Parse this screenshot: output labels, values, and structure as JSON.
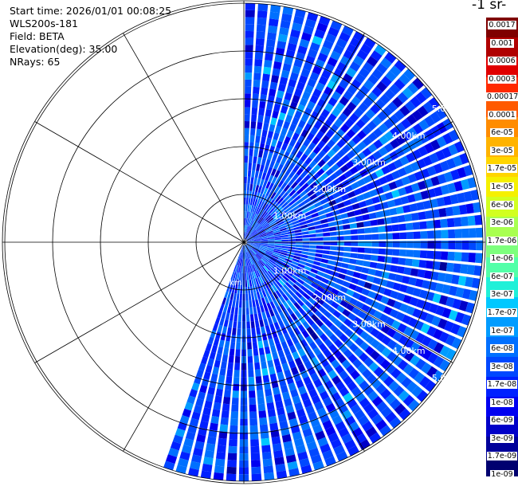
{
  "header": {
    "start_time": "Start time: 2026/01/01 00:08:25",
    "instrument": "WLS200s-181",
    "field": "Field: BETA",
    "elevation": "Elevation(deg): 35.00",
    "nrays": "NRays: 65"
  },
  "colorbar": {
    "title": "-1 sr-",
    "labels": [
      "0.0017",
      "0.001",
      "0.0006",
      "0.0003",
      "0.00017",
      "0.0001",
      "6e-05",
      "3e-05",
      "1.7e-05",
      "1e-05",
      "6e-06",
      "3e-06",
      "1.7e-06",
      "1e-06",
      "6e-07",
      "3e-07",
      "1.7e-07",
      "1e-07",
      "6e-08",
      "3e-08",
      "1.7e-08",
      "1e-08",
      "6e-09",
      "3e-09",
      "1.7e-09",
      "1e-09"
    ],
    "colors": [
      "#7f0000",
      "#b00000",
      "#e00000",
      "#ff2a00",
      "#ff5a00",
      "#ff8c00",
      "#ffb300",
      "#ffd500",
      "#f5f000",
      "#d2ff20",
      "#a8ff50",
      "#7dff7d",
      "#52ffa8",
      "#20f0d8",
      "#00c8ff",
      "#009cff",
      "#0070ff",
      "#0048ff",
      "#0020ff",
      "#0000f0",
      "#0000c8",
      "#00009a",
      "#000070"
    ]
  },
  "range_labels": {
    "upper": [
      "1.00km",
      "2.00km",
      "3.00km",
      "4.00km",
      "5.00km"
    ],
    "lower": [
      "1.00km",
      "2.00km",
      "3.00km",
      "4.00km",
      "5.00km"
    ],
    "small": "km"
  },
  "chart_data": {
    "type": "heatmap",
    "projection": "polar PPI scan",
    "field": "BETA",
    "elevation_deg": 35.0,
    "n_rays": 65,
    "azimuth_range_deg": [
      0,
      200
    ],
    "range_km": [
      0,
      5.0
    ],
    "range_rings_km": [
      1,
      2,
      3,
      4,
      5
    ],
    "spoke_azimuths_deg": [
      0,
      30,
      60,
      90,
      120,
      150,
      180,
      210,
      240,
      270,
      300,
      330
    ],
    "color_scale": "log",
    "value_range": [
      1e-09,
      0.0017
    ],
    "typical_value_range": [
      1e-08,
      6e-08
    ]
  }
}
